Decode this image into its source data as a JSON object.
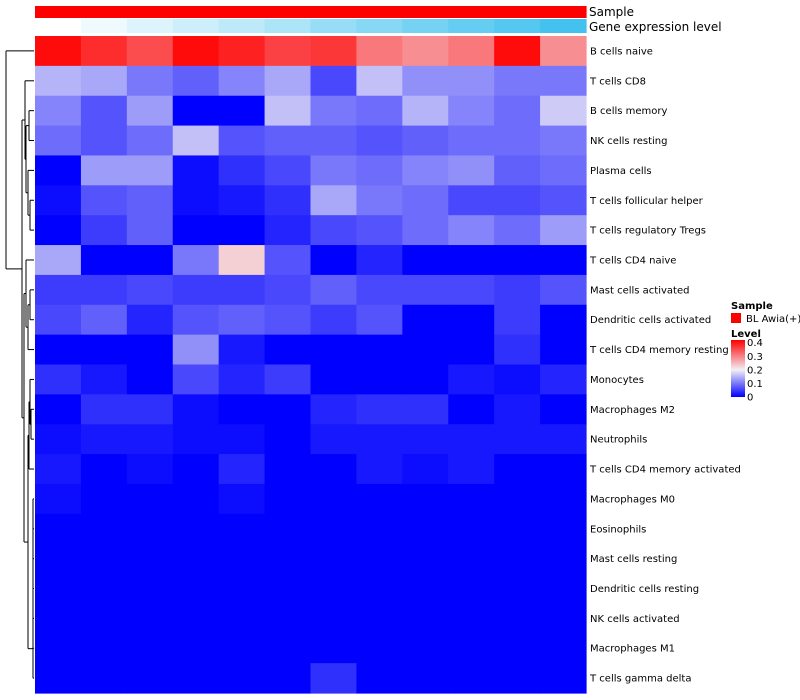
{
  "chart_data": {
    "type": "heatmap",
    "title": "",
    "xlabel": "",
    "ylabel": "",
    "rows": [
      "B cells naive",
      "T cells CD8",
      "B cells memory",
      "NK cells resting",
      "Plasma cells",
      "T cells follicular helper",
      "T cells regulatory  Tregs",
      "T cells CD4 naive",
      "Mast cells activated",
      "Dendritic cells activated",
      "T cells CD4 memory resting",
      "Monocytes",
      "Macrophages M2",
      "Neutrophils",
      "T cells CD4 memory activated",
      "Macrophages M0",
      "Eosinophils",
      "Mast cells resting",
      "Dendritic cells resting",
      "NK cells activated",
      "Macrophages M1",
      "T cells gamma delta"
    ],
    "values": [
      [
        0.41,
        0.38,
        0.35,
        0.41,
        0.39,
        0.36,
        0.37,
        0.31,
        0.29,
        0.31,
        0.41,
        0.29
      ],
      [
        0.15,
        0.14,
        0.1,
        0.08,
        0.11,
        0.14,
        0.06,
        0.16,
        0.12,
        0.12,
        0.1,
        0.1
      ],
      [
        0.11,
        0.07,
        0.13,
        0.0,
        0.0,
        0.16,
        0.1,
        0.09,
        0.15,
        0.11,
        0.09,
        0.17
      ],
      [
        0.09,
        0.07,
        0.09,
        0.16,
        0.07,
        0.08,
        0.08,
        0.07,
        0.08,
        0.09,
        0.09,
        0.1
      ],
      [
        0.0,
        0.13,
        0.13,
        0.01,
        0.04,
        0.06,
        0.1,
        0.09,
        0.11,
        0.12,
        0.08,
        0.09
      ],
      [
        0.01,
        0.07,
        0.08,
        0.01,
        0.02,
        0.04,
        0.14,
        0.1,
        0.09,
        0.06,
        0.06,
        0.07
      ],
      [
        0.0,
        0.05,
        0.08,
        0.0,
        0.0,
        0.03,
        0.06,
        0.07,
        0.09,
        0.11,
        0.09,
        0.13
      ],
      [
        0.14,
        0.0,
        0.0,
        0.1,
        0.23,
        0.07,
        0.0,
        0.03,
        0.0,
        0.0,
        0.0,
        0.0
      ],
      [
        0.05,
        0.05,
        0.06,
        0.05,
        0.05,
        0.06,
        0.08,
        0.06,
        0.06,
        0.06,
        0.05,
        0.07
      ],
      [
        0.06,
        0.08,
        0.03,
        0.07,
        0.08,
        0.07,
        0.05,
        0.07,
        0.0,
        0.0,
        0.05,
        0.0
      ],
      [
        0.0,
        0.0,
        0.0,
        0.12,
        0.02,
        0.0,
        0.0,
        0.0,
        0.0,
        0.0,
        0.04,
        0.0
      ],
      [
        0.04,
        0.02,
        0.0,
        0.06,
        0.03,
        0.05,
        0.0,
        0.0,
        0.0,
        0.02,
        0.01,
        0.03
      ],
      [
        0.0,
        0.04,
        0.04,
        0.01,
        0.0,
        0.0,
        0.03,
        0.04,
        0.04,
        0.0,
        0.02,
        0.0
      ],
      [
        0.01,
        0.02,
        0.02,
        0.01,
        0.01,
        0.0,
        0.02,
        0.02,
        0.02,
        0.02,
        0.02,
        0.02
      ],
      [
        0.02,
        0.0,
        0.01,
        0.0,
        0.03,
        0.0,
        0.0,
        0.02,
        0.01,
        0.02,
        0.0,
        0.0
      ],
      [
        0.01,
        0.0,
        0.0,
        0.0,
        0.01,
        0.0,
        0.0,
        0.0,
        0.0,
        0.0,
        0.0,
        0.0
      ],
      [
        0.0,
        0.0,
        0.0,
        0.0,
        0.0,
        0.0,
        0.0,
        0.0,
        0.0,
        0.0,
        0.0,
        0.0
      ],
      [
        0.0,
        0.0,
        0.0,
        0.0,
        0.0,
        0.0,
        0.0,
        0.0,
        0.0,
        0.0,
        0.0,
        0.0
      ],
      [
        0.0,
        0.0,
        0.0,
        0.0,
        0.0,
        0.0,
        0.0,
        0.0,
        0.0,
        0.0,
        0.0,
        0.0
      ],
      [
        0.0,
        0.0,
        0.0,
        0.0,
        0.0,
        0.0,
        0.0,
        0.0,
        0.0,
        0.0,
        0.0,
        0.0
      ],
      [
        0.0,
        0.0,
        0.0,
        0.0,
        0.0,
        0.0,
        0.0,
        0.0,
        0.0,
        0.0,
        0.0,
        0.0
      ],
      [
        0.0,
        0.0,
        0.0,
        0.0,
        0.0,
        0.0,
        0.04,
        0.0,
        0.0,
        0.0,
        0.0,
        0.0
      ]
    ],
    "annotations": [
      {
        "label": "Sample",
        "values": [
          "BL Awia(+)",
          "BL Awia(+)",
          "BL Awia(+)",
          "BL Awia(+)",
          "BL Awia(+)",
          "BL Awia(+)",
          "BL Awia(+)",
          "BL Awia(+)",
          "BL Awia(+)",
          "BL Awia(+)",
          "BL Awia(+)",
          "BL Awia(+)"
        ]
      },
      {
        "label": "Gene expression level",
        "values": [
          0.0,
          0.04,
          0.08,
          0.12,
          0.16,
          0.2,
          0.25,
          0.29,
          0.33,
          0.37,
          0.41,
          0.45
        ]
      }
    ],
    "legend": {
      "sample_title": "Sample",
      "sample_entries": [
        {
          "label": "BL Awia(+)",
          "color": "#ff0000"
        }
      ],
      "level_title": "Level",
      "level_ticks": [
        "0.4",
        "0.3",
        "0.2",
        "0.1",
        "0"
      ],
      "level_range": [
        0,
        0.42
      ],
      "placement": "right"
    },
    "color_scale": {
      "low": "#0000ff",
      "mid": "#f2f0f5",
      "high": "#ff0000",
      "mid_value": 0.2
    },
    "annotation_gradient": {
      "low": "#ffffff",
      "high": "#44c2ef"
    },
    "dendrogram": true
  }
}
